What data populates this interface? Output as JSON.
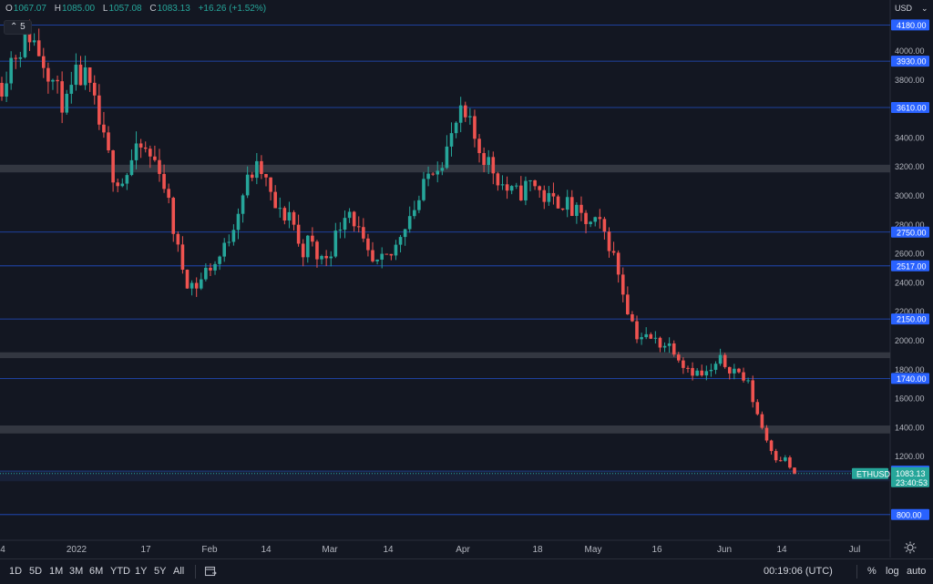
{
  "header": {
    "ohlc": [
      {
        "label": "O",
        "value": "1067.07"
      },
      {
        "label": "H",
        "value": "1085.00"
      },
      {
        "label": "L",
        "value": "1057.08"
      },
      {
        "label": "C",
        "value": "1083.13"
      }
    ],
    "change": "+16.26 (+1.52%)",
    "collapse_count": "5"
  },
  "colors": {
    "up": "#26a69a",
    "down": "#ef5350",
    "level": "#2962ff",
    "zone": "#3a3d46",
    "background": "#131722"
  },
  "chart_data": {
    "type": "candlestick",
    "symbol": "ETHUSD",
    "currency": "USD",
    "last_price": "1083.13",
    "countdown": "23:40:53",
    "y_ticks": [
      "4000.00",
      "3800.00",
      "3400.00",
      "3200.00",
      "3000.00",
      "2800.00",
      "2600.00",
      "2400.00",
      "2200.00",
      "2000.00",
      "1800.00",
      "1600.00",
      "1400.00",
      "1200.00"
    ],
    "levels": [
      "4180.00",
      "3930.00",
      "3610.00",
      "2750.00",
      "2517.00",
      "2150.00",
      "1740.00",
      "1100.00",
      "800.00"
    ],
    "zones": [
      [
        3162,
        3215
      ],
      [
        1880,
        1920
      ],
      [
        1360,
        1415
      ]
    ],
    "x_labels": [
      "4",
      "2022",
      "17",
      "Feb",
      "14",
      "Mar",
      "14",
      "Apr",
      "18",
      "May",
      "16",
      "Jun",
      "14",
      "Jul"
    ],
    "close_path": [
      3780,
      3950,
      4030,
      4120,
      4000,
      3880,
      3700,
      3620,
      3820,
      3800,
      3600,
      3350,
      3150,
      3100,
      3250,
      3330,
      3260,
      3200,
      2900,
      2580,
      2400,
      2380,
      2500,
      2540,
      2650,
      2850,
      3050,
      3180,
      3160,
      2950,
      2850,
      2900,
      2600,
      2700,
      2550,
      2600,
      2750,
      2950,
      2800,
      2600,
      2500,
      2550,
      2600,
      2800,
      2900,
      3000,
      3200,
      3250,
      3350,
      3550,
      3500,
      3350,
      3250,
      3150,
      3050,
      3000,
      3050,
      3100,
      3000,
      2950,
      2980,
      2900,
      2850,
      2800,
      2800,
      2700,
      2500,
      2250,
      2050,
      2020,
      2000,
      1980,
      1960,
      1850,
      1800,
      1760,
      1780,
      1860,
      1820,
      1780,
      1700,
      1500,
      1320,
      1200,
      1180,
      1083
    ]
  },
  "time_buttons": [
    "1D",
    "5D",
    "1M",
    "3M",
    "6M",
    "YTD",
    "1Y",
    "5Y",
    "All"
  ],
  "bottom_right": {
    "time": "00:19:06 (UTC)",
    "percent": "%",
    "log": "log",
    "auto": "auto"
  }
}
